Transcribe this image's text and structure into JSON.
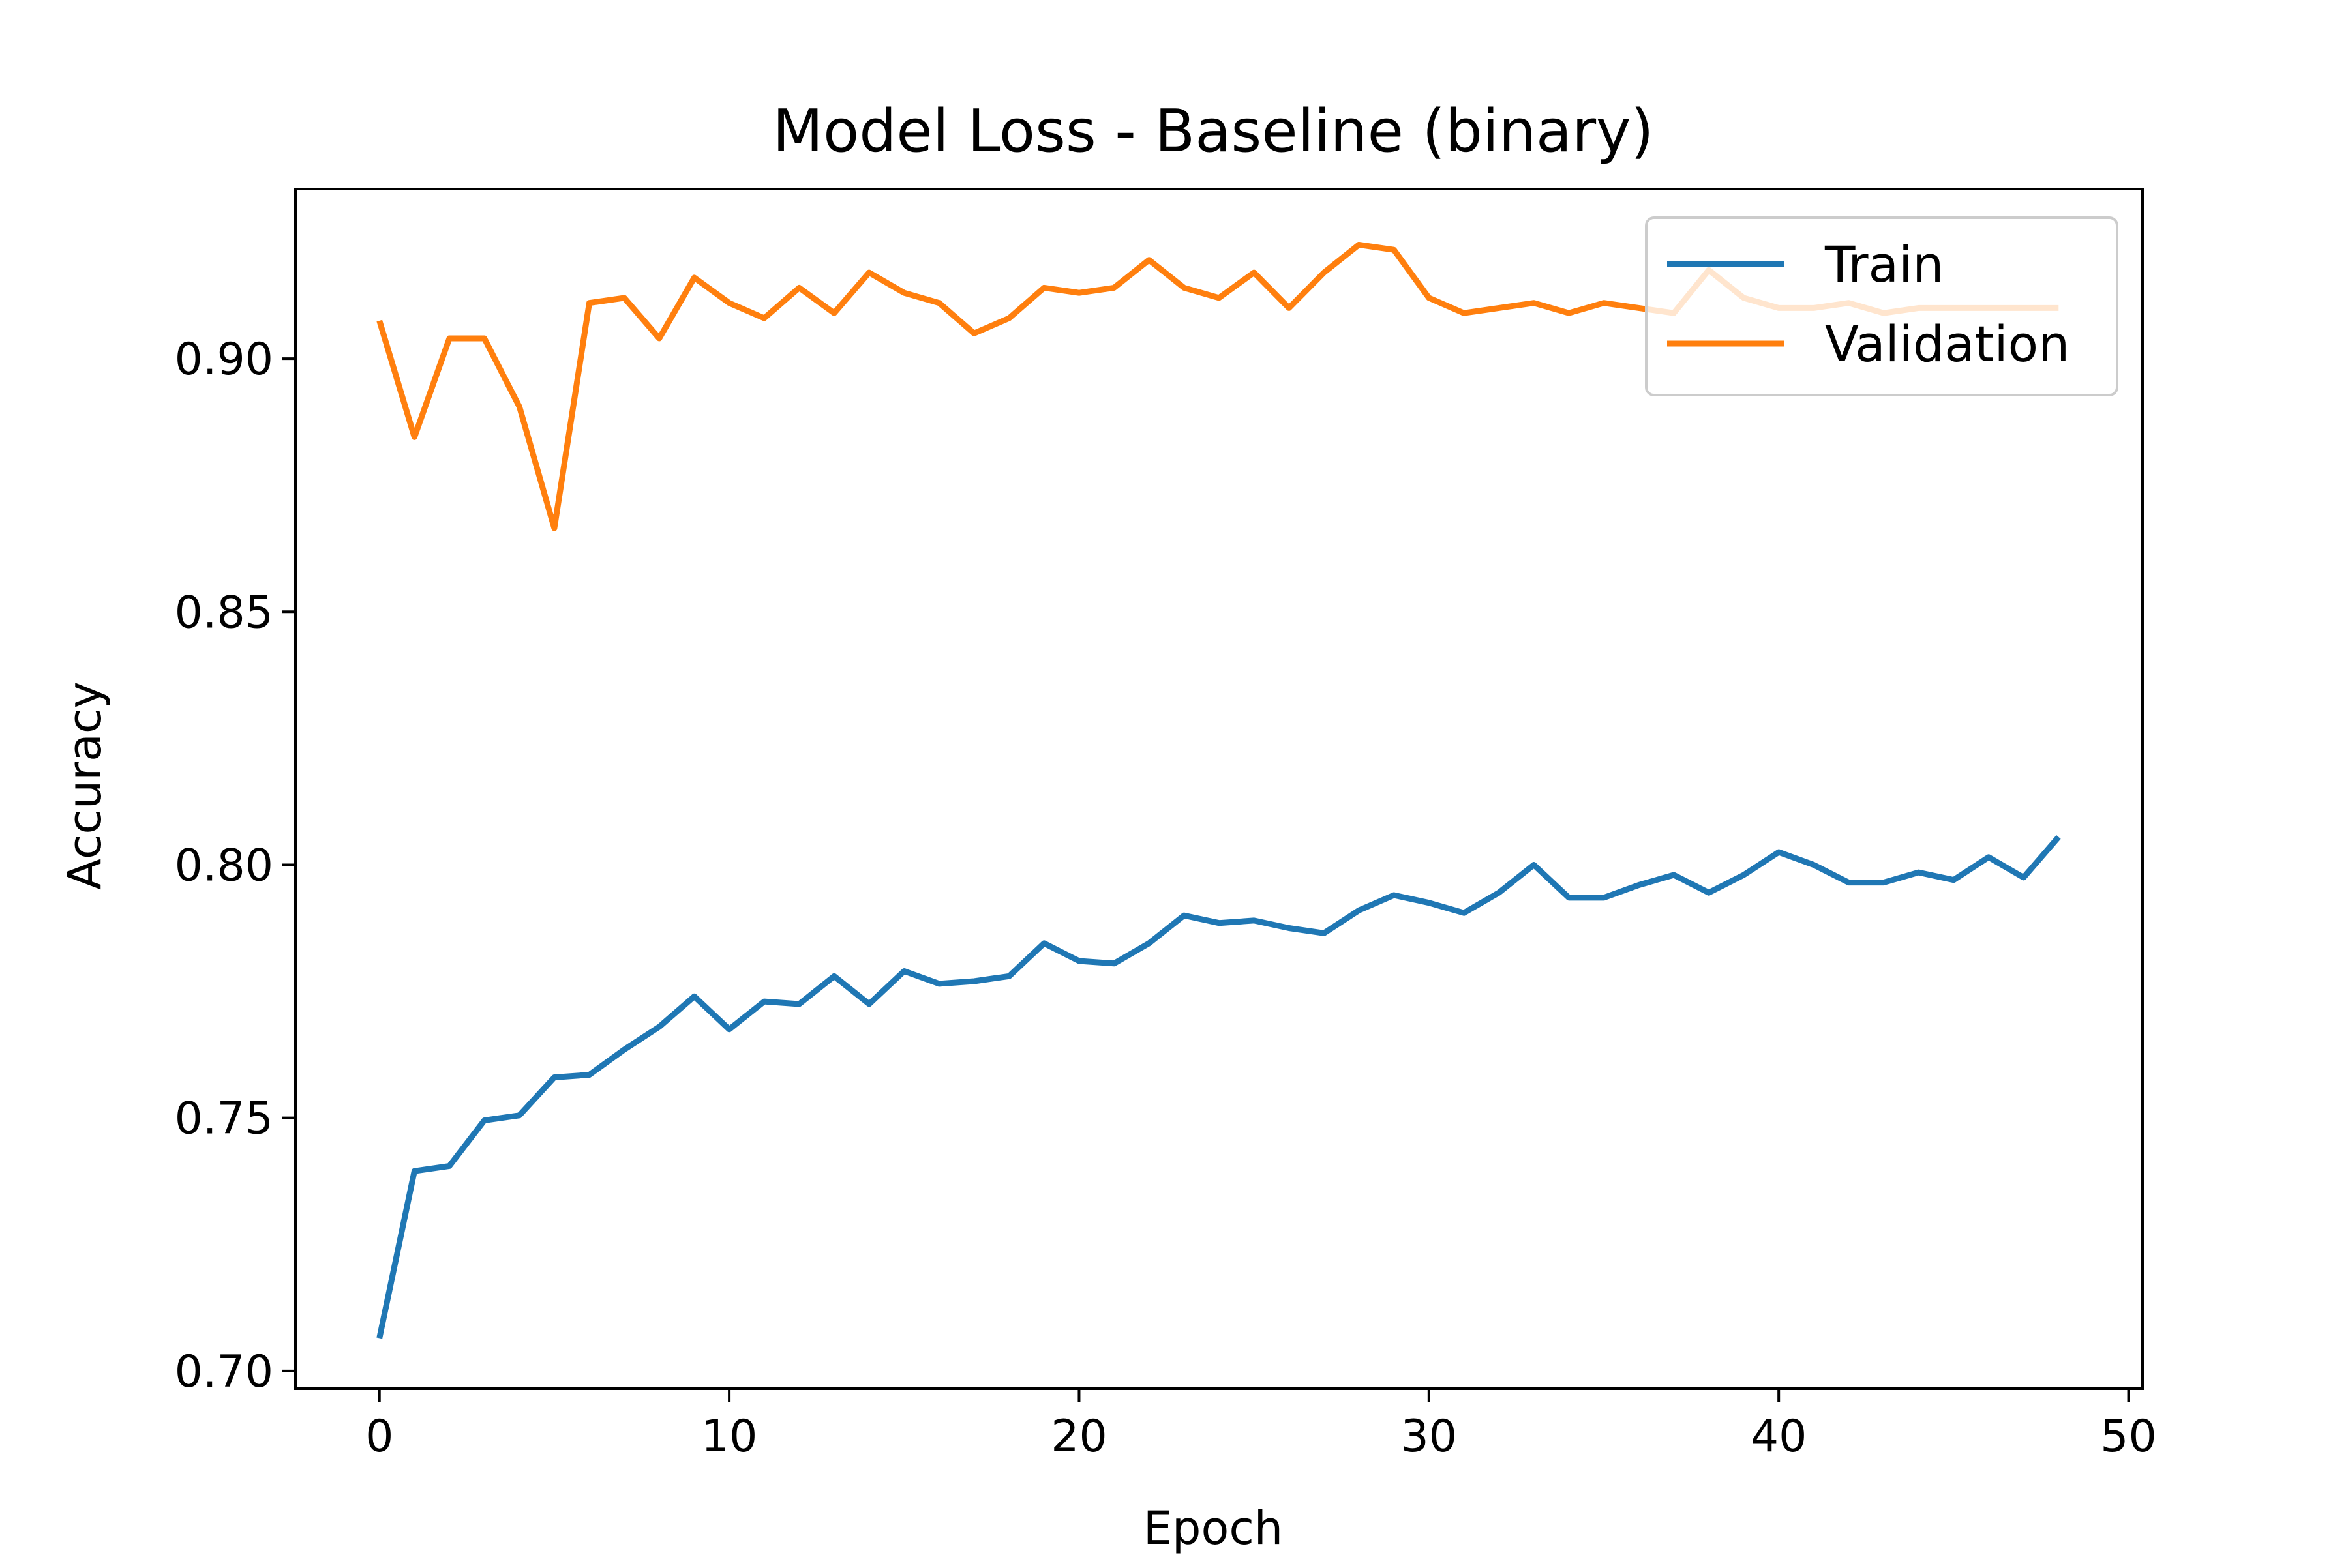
{
  "chart_data": {
    "type": "line",
    "title": "Model Loss - Baseline (binary)",
    "xlabel": "Epoch",
    "ylabel": "Accuracy",
    "xlim": [
      -2.4,
      50.4
    ],
    "ylim": [
      0.6965,
      0.9335
    ],
    "xticks": [
      0,
      10,
      20,
      30,
      40,
      50
    ],
    "xtick_labels": [
      "0",
      "10",
      "20",
      "30",
      "40",
      "50"
    ],
    "yticks": [
      0.7,
      0.75,
      0.8,
      0.85,
      0.9
    ],
    "ytick_labels": [
      "0.70",
      "0.75",
      "0.80",
      "0.85",
      "0.90"
    ],
    "grid": false,
    "legend_position": "top-right",
    "x": [
      0,
      1,
      2,
      3,
      4,
      5,
      6,
      7,
      8,
      9,
      10,
      11,
      12,
      13,
      14,
      15,
      16,
      17,
      18,
      19,
      20,
      21,
      22,
      23,
      24,
      25,
      26,
      27,
      28,
      29,
      30,
      31,
      32,
      33,
      34,
      35,
      36,
      37,
      38,
      39,
      40,
      41,
      42,
      43,
      44,
      45,
      46,
      47,
      48
    ],
    "series": [
      {
        "name": "Train",
        "color": "#1f77b4",
        "values": [
          0.7065,
          0.7395,
          0.7405,
          0.7495,
          0.7505,
          0.758,
          0.7585,
          0.7635,
          0.768,
          0.774,
          0.7675,
          0.773,
          0.7725,
          0.778,
          0.7725,
          0.779,
          0.7765,
          0.777,
          0.778,
          0.7845,
          0.781,
          0.7805,
          0.7845,
          0.79,
          0.7885,
          0.789,
          0.7875,
          0.7865,
          0.791,
          0.794,
          0.7925,
          0.7905,
          0.7945,
          0.8,
          0.7935,
          0.7935,
          0.796,
          0.798,
          0.7945,
          0.798,
          0.8025,
          0.8,
          0.7965,
          0.7965,
          0.7985,
          0.797,
          0.8015,
          0.7975,
          0.8055
        ]
      },
      {
        "name": "Validation",
        "color": "#ff7f0e",
        "values": [
          0.9075,
          0.8845,
          0.904,
          0.904,
          0.8905,
          0.8665,
          0.911,
          0.912,
          0.904,
          0.916,
          0.911,
          0.908,
          0.914,
          0.909,
          0.917,
          0.913,
          0.911,
          0.905,
          0.908,
          0.914,
          0.913,
          0.914,
          0.9195,
          0.914,
          0.912,
          0.917,
          0.91,
          0.917,
          0.9225,
          0.9215,
          0.912,
          0.909,
          0.91,
          0.911,
          0.909,
          0.911,
          0.91,
          0.909,
          0.9175,
          0.912,
          0.91,
          0.91,
          0.911,
          0.909,
          0.91,
          0.91,
          0.91,
          0.91,
          0.91
        ]
      }
    ]
  }
}
